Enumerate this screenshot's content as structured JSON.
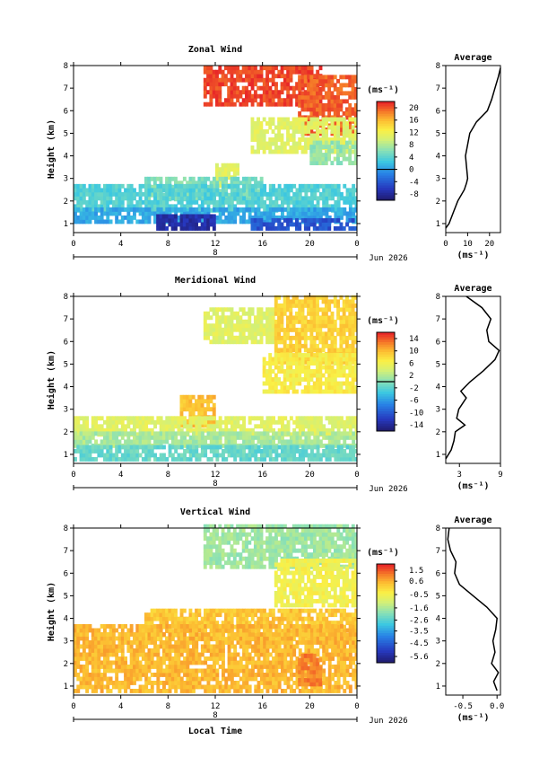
{
  "figure": {
    "date_label": "Jun 2026",
    "xlabel": "Local Time",
    "day_label": "8",
    "unit_label": "(ms⁻¹)"
  },
  "chart_data": [
    {
      "type": "heatmap",
      "title": "Zonal Wind",
      "ylabel": "Height (km)",
      "xlabel": "",
      "x_ticks": [
        "0",
        "4",
        "8",
        "12",
        "16",
        "20",
        "0"
      ],
      "y_ticks": [
        "1",
        "2",
        "3",
        "4",
        "5",
        "6",
        "7",
        "8"
      ],
      "ylim": [
        0.6,
        8
      ],
      "xlim": [
        0,
        24
      ],
      "colorbar": {
        "ticks": [
          "20",
          "16",
          "12",
          "8",
          "4",
          "0",
          "-4",
          "-8"
        ],
        "range": [
          -10,
          22
        ],
        "zero_line": 0
      },
      "regions": [
        {
          "t0": 11,
          "t1": 21,
          "h0": 6.2,
          "h1": 7.9,
          "v": 21
        },
        {
          "t0": 19,
          "t1": 24,
          "h0": 4.9,
          "h1": 7.5,
          "v": 20
        },
        {
          "t0": 15,
          "t1": 24,
          "h0": 4.1,
          "h1": 5.7,
          "v": 11
        },
        {
          "t0": 20,
          "t1": 24,
          "h0": 3.6,
          "h1": 4.6,
          "v": 7
        },
        {
          "t0": 12,
          "t1": 14,
          "h0": 2.6,
          "h1": 3.5,
          "v": 11
        },
        {
          "t0": 6,
          "t1": 16,
          "h0": 2.0,
          "h1": 3.0,
          "v": 6
        },
        {
          "t0": 0,
          "t1": 24,
          "h0": 1.5,
          "h1": 2.6,
          "v": 4
        },
        {
          "t0": 0,
          "t1": 24,
          "h0": 1.0,
          "h1": 1.6,
          "v": 1
        },
        {
          "t0": 7,
          "t1": 12,
          "h0": 0.7,
          "h1": 1.3,
          "v": -7
        },
        {
          "t0": 15,
          "t1": 24,
          "h0": 0.7,
          "h1": 1.2,
          "v": -4
        }
      ],
      "profile": {
        "title": "Average",
        "xlabel": "(ms⁻¹)",
        "x_ticks": [
          "0",
          "10",
          "20"
        ],
        "xlim": [
          0,
          25
        ],
        "y_ticks": [
          "1",
          "2",
          "3",
          "4",
          "5",
          "6",
          "7",
          "8"
        ],
        "heights": [
          0.8,
          1.0,
          1.5,
          2.0,
          2.5,
          2.8,
          3.0,
          3.5,
          4.0,
          4.5,
          5.0,
          5.5,
          6.0,
          6.5,
          7.0,
          7.5,
          7.9
        ],
        "values": [
          0,
          1.5,
          3.5,
          5.5,
          8.5,
          9.5,
          10,
          9.5,
          9,
          10,
          11,
          14,
          19,
          21,
          22.5,
          24,
          25
        ]
      }
    },
    {
      "type": "heatmap",
      "title": "Meridional Wind",
      "ylabel": "Height (km)",
      "xlabel": "",
      "x_ticks": [
        "0",
        "4",
        "8",
        "12",
        "16",
        "20",
        "0"
      ],
      "y_ticks": [
        "1",
        "2",
        "3",
        "4",
        "5",
        "6",
        "7",
        "8"
      ],
      "ylim": [
        0.6,
        8
      ],
      "xlim": [
        0,
        24
      ],
      "colorbar": {
        "ticks": [
          "14",
          "10",
          "6",
          "2",
          "-2",
          "-6",
          "-10",
          "-14"
        ],
        "range": [
          -16,
          16
        ],
        "zero_line": 0
      },
      "regions": [
        {
          "t0": 11,
          "t1": 17,
          "h0": 5.9,
          "h1": 7.5,
          "v": 5
        },
        {
          "t0": 17,
          "t1": 24,
          "h0": 5.0,
          "h1": 8.0,
          "v": 9
        },
        {
          "t0": 16,
          "t1": 24,
          "h0": 3.7,
          "h1": 5.4,
          "v": 7
        },
        {
          "t0": 9,
          "t1": 12,
          "h0": 2.2,
          "h1": 3.5,
          "v": 10
        },
        {
          "t0": 0,
          "t1": 24,
          "h0": 1.8,
          "h1": 2.6,
          "v": 5
        },
        {
          "t0": 0,
          "t1": 24,
          "h0": 1.3,
          "h1": 1.9,
          "v": 2
        },
        {
          "t0": 0,
          "t1": 24,
          "h0": 0.7,
          "h1": 1.3,
          "v": -1
        }
      ],
      "profile": {
        "title": "Average",
        "xlabel": "(ms⁻¹)",
        "x_ticks": [
          "3",
          "9"
        ],
        "xlim": [
          1,
          9
        ],
        "y_ticks": [
          "1",
          "2",
          "3",
          "4",
          "5",
          "6",
          "7",
          "8"
        ],
        "heights": [
          0.8,
          1.2,
          1.6,
          2.0,
          2.3,
          2.6,
          3.0,
          3.5,
          3.8,
          4.2,
          4.7,
          5.2,
          5.6,
          6.0,
          6.5,
          7.0,
          7.5,
          8.0
        ],
        "values": [
          1,
          1.8,
          2.2,
          2.4,
          3.8,
          2.6,
          2.9,
          4.0,
          3.2,
          4.5,
          6.5,
          8.2,
          8.8,
          7.3,
          7.0,
          7.6,
          6.3,
          4.0
        ]
      }
    },
    {
      "type": "heatmap",
      "title": "Vertical Wind",
      "ylabel": "Height (km)",
      "xlabel": "Local Time",
      "x_ticks": [
        "0",
        "4",
        "8",
        "12",
        "16",
        "20",
        "0"
      ],
      "y_ticks": [
        "1",
        "2",
        "3",
        "4",
        "5",
        "6",
        "7",
        "8"
      ],
      "ylim": [
        0.6,
        8
      ],
      "xlim": [
        0,
        24
      ],
      "colorbar": {
        "ticks": [
          "1.5",
          "0.6",
          "-0.5",
          "-1.6",
          "-2.6",
          "-3.5",
          "-4.5",
          "-5.6"
        ],
        "range": [
          -6.0,
          2.0
        ],
        "zero_line": null
      },
      "regions": [
        {
          "t0": 11,
          "t1": 24,
          "h0": 6.2,
          "h1": 8.0,
          "v": -1.6
        },
        {
          "t0": 17,
          "t1": 24,
          "h0": 4.5,
          "h1": 6.5,
          "v": -0.4
        },
        {
          "t0": 6,
          "t1": 24,
          "h0": 3.0,
          "h1": 4.3,
          "v": 0.4
        },
        {
          "t0": 0,
          "t1": 24,
          "h0": 0.7,
          "h1": 3.6,
          "v": 0.6
        },
        {
          "t0": 19,
          "t1": 21,
          "h0": 1.0,
          "h1": 2.4,
          "v": 1.2
        }
      ],
      "profile": {
        "title": "Average",
        "xlabel": "(ms⁻¹)",
        "x_ticks": [
          "-0.5",
          "0.0"
        ],
        "xlim": [
          -0.75,
          0.05
        ],
        "y_ticks": [
          "1",
          "2",
          "3",
          "4",
          "5",
          "6",
          "7",
          "8"
        ],
        "heights": [
          0.8,
          1.2,
          1.6,
          2.0,
          2.5,
          3.0,
          3.5,
          4.0,
          4.5,
          5.0,
          5.5,
          6.0,
          6.5,
          7.0,
          7.5,
          8.0
        ],
        "values": [
          0.0,
          -0.05,
          0.02,
          -0.08,
          -0.03,
          -0.06,
          -0.02,
          0.0,
          -0.15,
          -0.35,
          -0.55,
          -0.62,
          -0.6,
          -0.68,
          -0.72,
          -0.7
        ]
      }
    }
  ]
}
